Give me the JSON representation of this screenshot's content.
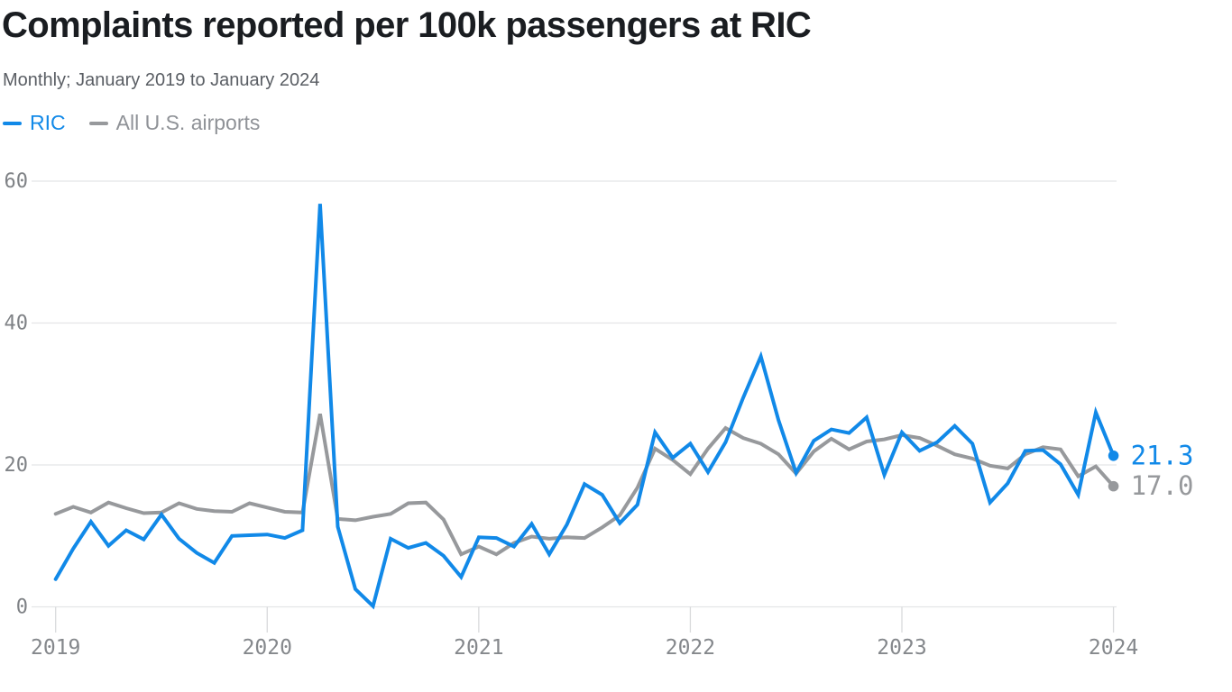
{
  "header": {
    "title": "Complaints reported per 100k passengers at RIC",
    "subtitle": "Monthly; January 2019 to January 2024"
  },
  "legend": {
    "ric_label": "RIC",
    "usa_label": "All U.S. airports"
  },
  "colors": {
    "ric_blue": "#1189e8",
    "usa_gray": "#97999c",
    "gridline": "#e4e5e7",
    "tickline": "#d9dadc",
    "y_label": "#7f8286",
    "x_label": "#85888c"
  },
  "chart_data": {
    "type": "line",
    "title": "Complaints reported per 100k passengers at RIC",
    "subtitle": "Monthly; January 2019 to January 2024",
    "frequency": "monthly",
    "x_start": "2019-01",
    "x_end": "2024-01",
    "x_tick_labels": [
      "2019",
      "2020",
      "2021",
      "2022",
      "2023",
      "2024"
    ],
    "y_ticks": [
      0,
      20,
      40,
      60
    ],
    "ylim": [
      0,
      60
    ],
    "grid": "horizontal",
    "legend_position": "top-left",
    "series": [
      {
        "name": "All U.S. airports",
        "color": "#97999c",
        "end_label": "17.0",
        "values": [
          13.1,
          14.1,
          13.3,
          14.7,
          13.9,
          13.2,
          13.3,
          14.6,
          13.8,
          13.5,
          13.4,
          14.6,
          14.0,
          13.4,
          13.3,
          27.2,
          12.4,
          12.2,
          12.7,
          13.1,
          14.6,
          14.7,
          12.3,
          7.4,
          8.5,
          7.4,
          9.0,
          9.9,
          9.6,
          9.8,
          9.7,
          11.2,
          12.9,
          16.8,
          22.3,
          20.7,
          18.7,
          22.3,
          25.2,
          23.8,
          23.0,
          21.5,
          18.8,
          21.9,
          23.7,
          22.2,
          23.3,
          23.6,
          24.2,
          23.8,
          22.7,
          21.5,
          20.9,
          19.9,
          19.5,
          21.5,
          22.5,
          22.2,
          18.4,
          19.8,
          17.0
        ]
      },
      {
        "name": "RIC",
        "color": "#1189e8",
        "end_label": "21.3",
        "values": [
          3.9,
          8.2,
          12.0,
          8.6,
          10.8,
          9.5,
          13.0,
          9.6,
          7.6,
          6.2,
          10.0,
          10.1,
          10.2,
          9.7,
          10.8,
          56.8,
          11.3,
          2.5,
          0.1,
          9.6,
          8.3,
          9.0,
          7.2,
          4.2,
          9.8,
          9.7,
          8.5,
          11.7,
          7.4,
          11.6,
          17.3,
          15.8,
          11.8,
          14.4,
          24.6,
          21.0,
          23.0,
          19.0,
          23.2,
          29.5,
          35.3,
          26.3,
          18.9,
          23.4,
          25.0,
          24.5,
          26.7,
          18.6,
          24.6,
          22.0,
          23.2,
          25.5,
          23.0,
          14.7,
          17.4,
          22.0,
          22.1,
          20.1,
          15.8,
          27.4,
          21.3
        ]
      }
    ]
  }
}
